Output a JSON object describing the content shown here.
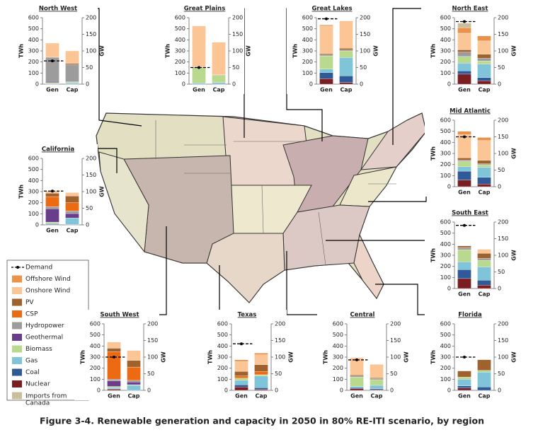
{
  "caption": "Figure 3-4. Renewable generation and capacity in 2050 in 80% RE-ITI scenario, by region",
  "legend": [
    {
      "name": "Demand",
      "color": "#000000"
    },
    {
      "name": "Offshore Wind",
      "color": "#e8924a"
    },
    {
      "name": "Onshore Wind",
      "color": "#fbc596"
    },
    {
      "name": "PV",
      "color": "#a0622d"
    },
    {
      "name": "CSP",
      "color": "#ec6a12"
    },
    {
      "name": "Hydropower",
      "color": "#9c9c9c"
    },
    {
      "name": "Geothermal",
      "color": "#6a3d8a"
    },
    {
      "name": "Biomass",
      "color": "#b9d98e"
    },
    {
      "name": "Gas",
      "color": "#80c4da"
    },
    {
      "name": "Coal",
      "color": "#2f5a97"
    },
    {
      "name": "Nuclear",
      "color": "#7b1e22"
    },
    {
      "name": "Imports from Canada",
      "color": "#c9bf9a"
    }
  ],
  "chart_data": [
    {
      "type": "bar",
      "stacked": true,
      "title": "North West",
      "categories": [
        "Gen",
        "Cap"
      ],
      "bar_axes": [
        "y",
        "y2"
      ],
      "ylabel": "TWh",
      "y2label": "GW",
      "ylim": [
        0,
        600
      ],
      "yticks": [
        0,
        100,
        200,
        300,
        400,
        500,
        600
      ],
      "y2lim": [
        0,
        200
      ],
      "y2ticks": [
        0,
        50,
        100,
        150,
        200
      ],
      "demand": 210,
      "series": [
        {
          "values": [
            0,
            0
          ]
        },
        {
          "values": [
            125,
            38
          ]
        },
        {
          "values": [
            5,
            3
          ]
        },
        {
          "values": [
            0,
            0
          ]
        },
        {
          "values": [
            215,
            52
          ]
        },
        {
          "values": [
            10,
            1
          ]
        },
        {
          "values": [
            10,
            2
          ]
        },
        {
          "values": [
            5,
            4
          ]
        },
        {
          "values": [
            0,
            0
          ]
        },
        {
          "values": [
            0,
            0
          ]
        },
        {
          "values": [
            0,
            0
          ]
        }
      ]
    },
    {
      "type": "bar",
      "stacked": true,
      "title": "Great Plains",
      "categories": [
        "Gen",
        "Cap"
      ],
      "bar_axes": [
        "y",
        "y2"
      ],
      "ylabel": "TWh",
      "y2label": "GW",
      "ylim": [
        0,
        600
      ],
      "yticks": [
        0,
        100,
        200,
        300,
        400,
        500,
        600
      ],
      "y2lim": [
        0,
        200
      ],
      "y2ticks": [
        0,
        50,
        100,
        150,
        200
      ],
      "demand": 150,
      "series": [
        {
          "values": [
            0,
            0
          ]
        },
        {
          "values": [
            370,
            98
          ]
        },
        {
          "values": [
            5,
            1
          ]
        },
        {
          "values": [
            0,
            0
          ]
        },
        {
          "values": [
            0,
            0
          ]
        },
        {
          "values": [
            0,
            0
          ]
        },
        {
          "values": [
            140,
            22
          ]
        },
        {
          "values": [
            10,
            5
          ]
        },
        {
          "values": [
            0,
            0
          ]
        },
        {
          "values": [
            0,
            0
          ]
        },
        {
          "values": [
            0,
            0
          ]
        }
      ]
    },
    {
      "type": "bar",
      "stacked": true,
      "title": "Great Lakes",
      "categories": [
        "Gen",
        "Cap"
      ],
      "bar_axes": [
        "y",
        "y2"
      ],
      "ylabel": "TWh",
      "y2label": "GW",
      "ylim": [
        0,
        600
      ],
      "yticks": [
        0,
        100,
        200,
        300,
        400,
        500,
        600
      ],
      "y2lim": [
        0,
        200
      ],
      "y2ticks": [
        0,
        50,
        100,
        150,
        200
      ],
      "demand": 590,
      "series": [
        {
          "values": [
            10,
            2
          ]
        },
        {
          "values": [
            250,
            80
          ]
        },
        {
          "values": [
            10,
            5
          ]
        },
        {
          "values": [
            0,
            0
          ]
        },
        {
          "values": [
            10,
            3
          ]
        },
        {
          "values": [
            0,
            0
          ]
        },
        {
          "values": [
            120,
            20
          ]
        },
        {
          "values": [
            30,
            55
          ]
        },
        {
          "values": [
            55,
            20
          ]
        },
        {
          "values": [
            50,
            5
          ]
        },
        {
          "values": [
            0,
            0
          ]
        }
      ]
    },
    {
      "type": "bar",
      "stacked": true,
      "title": "North East",
      "categories": [
        "Gen",
        "Cap"
      ],
      "bar_axes": [
        "y",
        "y2"
      ],
      "ylabel": "TWh",
      "y2label": "GW",
      "ylim": [
        0,
        600
      ],
      "yticks": [
        0,
        100,
        200,
        300,
        400,
        500,
        600
      ],
      "y2lim": [
        0,
        200
      ],
      "y2ticks": [
        0,
        50,
        100,
        150,
        200
      ],
      "demand": 565,
      "series": [
        {
          "values": [
            50,
            15
          ]
        },
        {
          "values": [
            150,
            40
          ]
        },
        {
          "values": [
            20,
            12
          ]
        },
        {
          "values": [
            0,
            0
          ]
        },
        {
          "values": [
            40,
            8
          ]
        },
        {
          "values": [
            0,
            0
          ]
        },
        {
          "values": [
            60,
            10
          ]
        },
        {
          "values": [
            70,
            40
          ]
        },
        {
          "values": [
            30,
            10
          ]
        },
        {
          "values": [
            90,
            10
          ]
        },
        {
          "values": [
            40,
            0
          ]
        }
      ]
    },
    {
      "type": "bar",
      "stacked": true,
      "title": "Mid Atlantic",
      "categories": [
        "Gen",
        "Cap"
      ],
      "bar_axes": [
        "y",
        "y2"
      ],
      "ylabel": "TWh",
      "y2label": "GW",
      "ylim": [
        0,
        600
      ],
      "yticks": [
        0,
        100,
        200,
        300,
        400,
        500,
        600
      ],
      "y2lim": [
        0,
        200
      ],
      "y2ticks": [
        0,
        50,
        100,
        150,
        200
      ],
      "demand": 450,
      "series": [
        {
          "values": [
            30,
            9
          ]
        },
        {
          "values": [
            210,
            60
          ]
        },
        {
          "values": [
            20,
            10
          ]
        },
        {
          "values": [
            0,
            0
          ]
        },
        {
          "values": [
            10,
            3
          ]
        },
        {
          "values": [
            0,
            0
          ]
        },
        {
          "values": [
            50,
            8
          ]
        },
        {
          "values": [
            40,
            30
          ]
        },
        {
          "values": [
            80,
            20
          ]
        },
        {
          "values": [
            60,
            8
          ]
        },
        {
          "values": [
            0,
            0
          ]
        }
      ]
    },
    {
      "type": "bar",
      "stacked": true,
      "title": "California",
      "categories": [
        "Gen",
        "Cap"
      ],
      "bar_axes": [
        "y",
        "y2"
      ],
      "ylabel": "TWh",
      "y2label": "GW",
      "ylim": [
        0,
        600
      ],
      "yticks": [
        0,
        100,
        200,
        300,
        400,
        500,
        600
      ],
      "y2lim": [
        0,
        200
      ],
      "y2ticks": [
        0,
        50,
        100,
        150,
        200
      ],
      "demand": 305,
      "series": [
        {
          "values": [
            0,
            0
          ]
        },
        {
          "values": [
            20,
            10
          ]
        },
        {
          "values": [
            30,
            20
          ]
        },
        {
          "values": [
            90,
            25
          ]
        },
        {
          "values": [
            20,
            8
          ]
        },
        {
          "values": [
            120,
            13
          ]
        },
        {
          "values": [
            10,
            0
          ]
        },
        {
          "values": [
            10,
            20
          ]
        },
        {
          "values": [
            0,
            0
          ]
        },
        {
          "values": [
            5,
            1
          ]
        },
        {
          "values": [
            0,
            0
          ]
        }
      ]
    },
    {
      "type": "bar",
      "stacked": true,
      "title": "South East",
      "categories": [
        "Gen",
        "Cap"
      ],
      "bar_axes": [
        "y",
        "y2"
      ],
      "ylabel": "TWh",
      "y2label": "GW",
      "ylim": [
        0,
        600
      ],
      "yticks": [
        0,
        100,
        200,
        300,
        400,
        500,
        600
      ],
      "y2lim": [
        0,
        200
      ],
      "y2ticks": [
        0,
        50,
        100,
        150,
        200
      ],
      "demand": 570,
      "series": [
        {
          "values": [
            0,
            0
          ]
        },
        {
          "values": [
            0,
            12
          ]
        },
        {
          "values": [
            15,
            15
          ]
        },
        {
          "values": [
            0,
            0
          ]
        },
        {
          "values": [
            20,
            6
          ]
        },
        {
          "values": [
            0,
            0
          ]
        },
        {
          "values": [
            110,
            20
          ]
        },
        {
          "values": [
            70,
            40
          ]
        },
        {
          "values": [
            80,
            15
          ]
        },
        {
          "values": [
            90,
            10
          ]
        },
        {
          "values": [
            0,
            0
          ]
        }
      ]
    },
    {
      "type": "bar",
      "stacked": true,
      "title": "South West",
      "categories": [
        "Gen",
        "Cap"
      ],
      "bar_axes": [
        "y",
        "y2"
      ],
      "ylabel": "TWh",
      "y2label": "GW",
      "ylim": [
        0,
        600
      ],
      "yticks": [
        0,
        100,
        200,
        300,
        400,
        500,
        600
      ],
      "y2lim": [
        0,
        200
      ],
      "y2ticks": [
        0,
        50,
        100,
        150,
        200
      ],
      "demand": 300,
      "series": [
        {
          "values": [
            0,
            0
          ]
        },
        {
          "values": [
            55,
            30
          ]
        },
        {
          "values": [
            30,
            20
          ]
        },
        {
          "values": [
            250,
            40
          ]
        },
        {
          "values": [
            15,
            5
          ]
        },
        {
          "values": [
            50,
            8
          ]
        },
        {
          "values": [
            10,
            2
          ]
        },
        {
          "values": [
            10,
            15
          ]
        },
        {
          "values": [
            5,
            0
          ]
        },
        {
          "values": [
            10,
            0
          ]
        },
        {
          "values": [
            0,
            0
          ]
        }
      ]
    },
    {
      "type": "bar",
      "stacked": true,
      "title": "Texas",
      "categories": [
        "Gen",
        "Cap"
      ],
      "bar_axes": [
        "y",
        "y2"
      ],
      "ylabel": "TWh",
      "y2label": "GW",
      "ylim": [
        0,
        600
      ],
      "yticks": [
        0,
        100,
        200,
        300,
        400,
        500,
        600
      ],
      "y2lim": [
        0,
        200
      ],
      "y2ticks": [
        0,
        50,
        100,
        150,
        200
      ],
      "demand": 420,
      "series": [
        {
          "values": [
            15,
            5
          ]
        },
        {
          "values": [
            90,
            30
          ]
        },
        {
          "values": [
            40,
            20
          ]
        },
        {
          "values": [
            20,
            10
          ]
        },
        {
          "values": [
            0,
            0
          ]
        },
        {
          "values": [
            0,
            0
          ]
        },
        {
          "values": [
            20,
            4
          ]
        },
        {
          "values": [
            40,
            35
          ]
        },
        {
          "values": [
            20,
            5
          ]
        },
        {
          "values": [
            30,
            3
          ]
        },
        {
          "values": [
            0,
            0
          ]
        }
      ]
    },
    {
      "type": "bar",
      "stacked": true,
      "title": "Central",
      "categories": [
        "Gen",
        "Cap"
      ],
      "bar_axes": [
        "y",
        "y2"
      ],
      "ylabel": "TWh",
      "y2label": "GW",
      "ylim": [
        0,
        600
      ],
      "yticks": [
        0,
        100,
        200,
        300,
        400,
        500,
        600
      ],
      "y2lim": [
        0,
        200
      ],
      "y2ticks": [
        0,
        50,
        100,
        150,
        200
      ],
      "demand": 275,
      "series": [
        {
          "values": [
            0,
            0
          ]
        },
        {
          "values": [
            155,
            40
          ]
        },
        {
          "values": [
            10,
            3
          ]
        },
        {
          "values": [
            0,
            0
          ]
        },
        {
          "values": [
            10,
            3
          ]
        },
        {
          "values": [
            0,
            0
          ]
        },
        {
          "values": [
            85,
            17
          ]
        },
        {
          "values": [
            10,
            10
          ]
        },
        {
          "values": [
            10,
            3
          ]
        },
        {
          "values": [
            15,
            2
          ]
        },
        {
          "values": [
            0,
            0
          ]
        }
      ]
    },
    {
      "type": "bar",
      "stacked": true,
      "title": "Florida",
      "categories": [
        "Gen",
        "Cap"
      ],
      "bar_axes": [
        "y",
        "y2"
      ],
      "ylabel": "TWh",
      "y2label": "GW",
      "ylim": [
        0,
        600
      ],
      "yticks": [
        0,
        100,
        200,
        300,
        400,
        500,
        600
      ],
      "y2lim": [
        0,
        200
      ],
      "y2ticks": [
        0,
        50,
        100,
        150,
        200
      ],
      "demand": 300,
      "series": [
        {
          "values": [
            0,
            0
          ]
        },
        {
          "values": [
            0,
            0
          ]
        },
        {
          "values": [
            55,
            32
          ]
        },
        {
          "values": [
            0,
            0
          ]
        },
        {
          "values": [
            0,
            0
          ]
        },
        {
          "values": [
            0,
            0
          ]
        },
        {
          "values": [
            20,
            5
          ]
        },
        {
          "values": [
            60,
            45
          ]
        },
        {
          "values": [
            20,
            10
          ]
        },
        {
          "values": [
            20,
            0
          ]
        },
        {
          "values": [
            0,
            0
          ]
        }
      ]
    }
  ]
}
